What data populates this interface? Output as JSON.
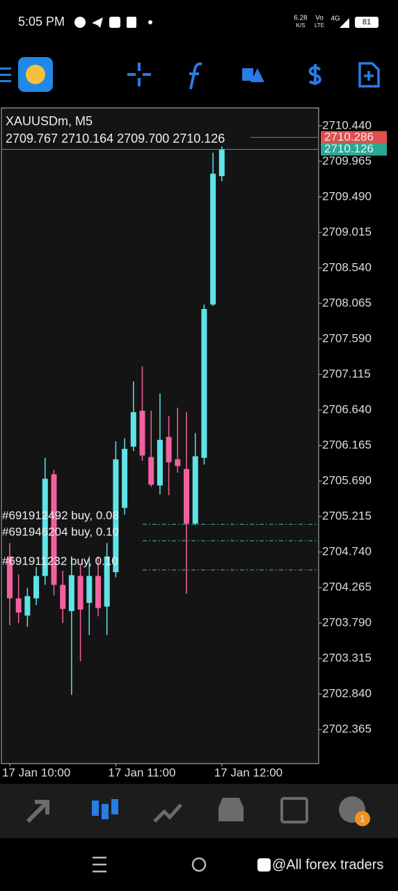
{
  "status_bar": {
    "time": "5:05 PM",
    "speed": "6.28",
    "speed_unit": "K/S",
    "net1": "Vo",
    "net2": "LTE",
    "net_type": "4G",
    "battery": "81"
  },
  "chart_data": {
    "type": "candlestick",
    "title": "XAUUSDm, M5",
    "subtitle": "2709.767 2710.164 2709.700 2710.126",
    "categories": [
      "17 Jan 10:00",
      null,
      null,
      null,
      null,
      null,
      null,
      null,
      null,
      null,
      null,
      null,
      "17 Jan 11:00",
      null,
      null,
      null,
      null,
      null,
      null,
      null,
      null,
      null,
      null,
      null,
      "17 Jan 12:00"
    ],
    "open": [
      2704.68,
      2704.12,
      2703.89,
      2704.12,
      2704.42,
      2705.78,
      2704.3,
      2703.95,
      2704.42,
      2704.06,
      2704.42,
      2704.01,
      2704.47,
      2705.33,
      2706.15,
      2706.63,
      2706.01,
      2705.63,
      2706.28,
      2705.98,
      2705.85,
      2705.12,
      2706.0,
      2708.05,
      2709.767
    ],
    "high": [
      2704.86,
      2704.44,
      2704.26,
      2704.54,
      2706.0,
      2705.84,
      2704.49,
      2704.58,
      2704.58,
      2704.68,
      2704.68,
      2704.86,
      2706.22,
      2706.26,
      2707.02,
      2707.22,
      2706.63,
      2706.86,
      2706.56,
      2706.67,
      2706.61,
      2706.33,
      2708.05,
      2710.08,
      2710.164
    ],
    "low": [
      2703.76,
      2703.79,
      2703.74,
      2704.03,
      2704.3,
      2704.16,
      2703.79,
      2702.83,
      2703.28,
      2703.63,
      2703.88,
      2703.63,
      2704.4,
      2705.24,
      2706.09,
      2705.96,
      2705.61,
      2705.51,
      2705.5,
      2705.8,
      2704.18,
      2705.1,
      2705.91,
      2708.03,
      2709.7
    ],
    "close": [
      2704.12,
      2703.93,
      2704.15,
      2704.42,
      2705.72,
      2704.3,
      2703.98,
      2704.43,
      2703.97,
      2704.42,
      2703.99,
      2704.68,
      2705.98,
      2706.12,
      2706.61,
      2706.03,
      2705.64,
      2706.24,
      2705.94,
      2705.89,
      2705.12,
      2706.02,
      2707.99,
      2709.8,
      2710.126
    ],
    "up_color": "#5fe3e8",
    "down_color": "#f2619f",
    "ylim": [
      2701.91,
      2710.68
    ],
    "yticks": [
      {
        "value": 2710.44,
        "label": "2710.440"
      },
      2709.965,
      {
        "value": 2709.49,
        "label": "2709.490"
      },
      2709.015,
      {
        "value": 2708.54,
        "label": "2708.540"
      },
      2708.065,
      {
        "value": 2707.59,
        "label": "2707.590"
      },
      2707.115,
      {
        "value": 2706.64,
        "label": "2706.640"
      },
      2706.165,
      {
        "value": 2705.69,
        "label": "2705.690"
      },
      2705.215,
      {
        "value": 2704.74,
        "label": "2704.740"
      },
      2704.265,
      {
        "value": 2703.79,
        "label": "2703.790"
      },
      2703.315,
      {
        "value": 2702.84,
        "label": "2702.840"
      },
      2702.365
    ],
    "price_lines": [
      {
        "value": 2710.286,
        "color": "#e0504c"
      },
      {
        "value": 2710.126,
        "color": "#2aa893"
      }
    ],
    "orders": [
      {
        "label": "#691912492 buy, 0.08",
        "value": 2705.11
      },
      {
        "label": "#691946204 buy, 0.10",
        "value": 2704.89
      },
      {
        "label": "#691911232 buy, 0.10",
        "value": 2704.5
      }
    ],
    "order_color": "#3bb9a6"
  },
  "badge": "1",
  "watermark": "@All forex traders"
}
